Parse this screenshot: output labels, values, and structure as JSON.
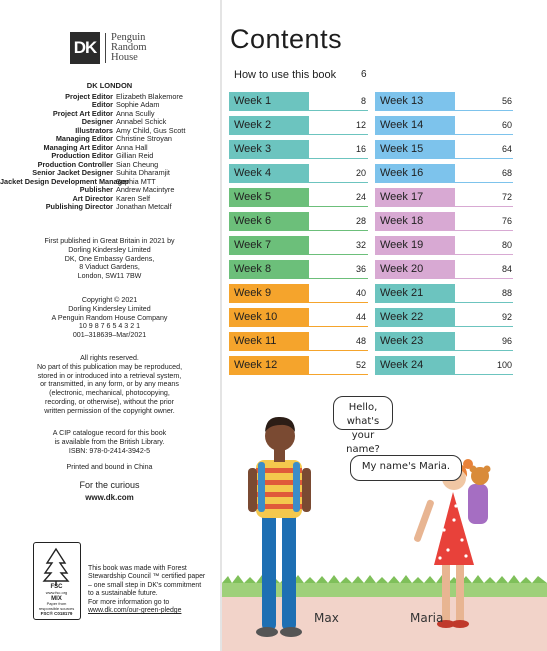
{
  "imprint": {
    "publisher_logo": {
      "mark": "DK",
      "line1": "Penguin",
      "line2": "Random",
      "line3": "House"
    },
    "dk_london": "DK LONDON",
    "credits": [
      {
        "role": "Project Editor",
        "name": "Elizabeth Blakemore"
      },
      {
        "role": "Editor",
        "name": "Sophie Adam"
      },
      {
        "role": "Project Art Editor",
        "name": "Anna Scully"
      },
      {
        "role": "Designer",
        "name": "Annabel Schick"
      },
      {
        "role": "Illustrators",
        "name": "Amy Child, Gus Scott"
      },
      {
        "role": "Managing Editor",
        "name": "Christine Stroyan"
      },
      {
        "role": "Managing Art Editor",
        "name": "Anna Hall"
      },
      {
        "role": "Production Editor",
        "name": "Gillian Reid"
      },
      {
        "role": "Production Controller",
        "name": "Sian Cheung"
      },
      {
        "role": "Senior Jacket Designer",
        "name": "Suhita Dharamjit"
      },
      {
        "role": "Jacket Design Development Manager",
        "name": "Sophia MTT"
      },
      {
        "role": "Publisher",
        "name": "Andrew Macintyre"
      },
      {
        "role": "Art Director",
        "name": "Karen Self"
      },
      {
        "role": "Publishing Director",
        "name": "Jonathan Metcalf"
      }
    ],
    "published": [
      "First published in Great Britain in 2021 by",
      "Dorling Kindersley Limited",
      "DK, One Embassy Gardens,",
      "8 Viaduct Gardens,",
      "London, SW11 7BW"
    ],
    "copyright": [
      "Copyright © 2021",
      "Dorling Kindersley Limited",
      "A Penguin Random House Company",
      "10  9  8  7  6  5  4  3  2  1",
      "001–318639–Mar/2021"
    ],
    "rights": [
      "All rights reserved.",
      "No part of this publication may be reproduced,",
      "stored in or introduced into a retrieval system,",
      "or transmitted, in any form, or by any means",
      "(electronic, mechanical, photocopying,",
      "recording, or otherwise), without the prior",
      "written permission of the copyright owner."
    ],
    "cip": [
      "A CIP catalogue record for this book",
      "is available from the British Library.",
      "ISBN: 978-0-2414-3942-5"
    ],
    "printed": "Printed and bound in China",
    "curious": "For the curious",
    "url": "www.dk.com",
    "fsc_logo": {
      "line1": "FSC",
      "line2": "www.fsc.org",
      "line3": "MIX",
      "line4": "Paper from",
      "line5": "responsible sources",
      "line6": "FSC® C018179"
    },
    "fsc_note": [
      "This book was made with Forest",
      "Stewardship Council ™ certified paper",
      "– one small step in DK's commitment",
      "to a sustainable future.",
      "For more information go to"
    ],
    "fsc_url": "www.dk.com/our-green-pledge"
  },
  "contents": {
    "title": "Contents",
    "how_to": {
      "label": "How to use this book",
      "page": "6"
    },
    "weeks_left": [
      {
        "label": "Week 1",
        "page": "8",
        "color": "#6cc4bf"
      },
      {
        "label": "Week 2",
        "page": "12",
        "color": "#6cc4bf"
      },
      {
        "label": "Week 3",
        "page": "16",
        "color": "#6cc4bf"
      },
      {
        "label": "Week 4",
        "page": "20",
        "color": "#6cc4bf"
      },
      {
        "label": "Week 5",
        "page": "24",
        "color": "#6cbf7a"
      },
      {
        "label": "Week 6",
        "page": "28",
        "color": "#6cbf7a"
      },
      {
        "label": "Week 7",
        "page": "32",
        "color": "#6cbf7a"
      },
      {
        "label": "Week 8",
        "page": "36",
        "color": "#6cbf7a"
      },
      {
        "label": "Week 9",
        "page": "40",
        "color": "#f5a42c"
      },
      {
        "label": "Week 10",
        "page": "44",
        "color": "#f5a42c"
      },
      {
        "label": "Week 11",
        "page": "48",
        "color": "#f5a42c"
      },
      {
        "label": "Week 12",
        "page": "52",
        "color": "#f5a42c"
      }
    ],
    "weeks_right": [
      {
        "label": "Week 13",
        "page": "56",
        "color": "#7dc3ec"
      },
      {
        "label": "Week 14",
        "page": "60",
        "color": "#7dc3ec"
      },
      {
        "label": "Week 15",
        "page": "64",
        "color": "#7dc3ec"
      },
      {
        "label": "Week 16",
        "page": "68",
        "color": "#7dc3ec"
      },
      {
        "label": "Week 17",
        "page": "72",
        "color": "#d8a9d3"
      },
      {
        "label": "Week 18",
        "page": "76",
        "color": "#d8a9d3"
      },
      {
        "label": "Week 19",
        "page": "80",
        "color": "#d8a9d3"
      },
      {
        "label": "Week 20",
        "page": "84",
        "color": "#d8a9d3"
      },
      {
        "label": "Week 21",
        "page": "88",
        "color": "#6cc4bf"
      },
      {
        "label": "Week 22",
        "page": "92",
        "color": "#6cc4bf"
      },
      {
        "label": "Week 23",
        "page": "96",
        "color": "#6cc4bf"
      },
      {
        "label": "Week 24",
        "page": "100",
        "color": "#6cc4bf"
      }
    ]
  },
  "illustration": {
    "bubble_max": [
      "Hello, what's",
      "your name?"
    ],
    "bubble_maria": "My name's Maria.",
    "name_max": "Max",
    "name_maria": "Maria"
  }
}
